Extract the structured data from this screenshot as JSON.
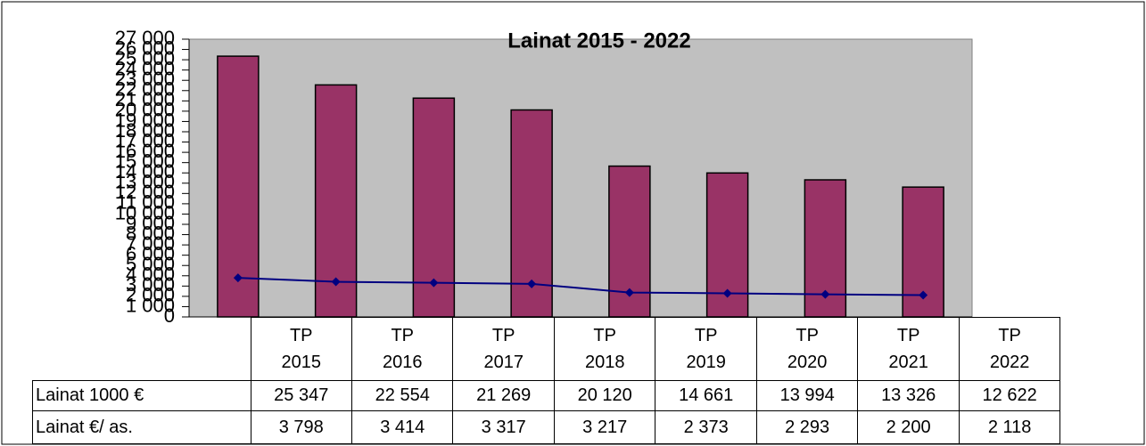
{
  "chart_data": {
    "type": "bar",
    "title": "Lainat 2015 - 2022",
    "categories": [
      "TP 2015",
      "TP 2016",
      "TP 2017",
      "TP 2018",
      "TP 2019",
      "TP 2020",
      "TP 2021",
      "TP 2022"
    ],
    "series": [
      {
        "name": "Lainat 1000 €",
        "type": "bar",
        "color": "#993366",
        "values": [
          25347,
          22554,
          21269,
          20120,
          14661,
          13994,
          13326,
          12622
        ],
        "value_labels": [
          "25 347",
          "22 554",
          "21 269",
          "20 120",
          "14 661",
          "13 994",
          "13 326",
          "12 622"
        ]
      },
      {
        "name": "Lainat €/ as.",
        "type": "line",
        "color": "#000080",
        "values": [
          3798,
          3414,
          3317,
          3217,
          2373,
          2293,
          2200,
          2118
        ],
        "value_labels": [
          "3 798",
          "3 414",
          "3 317",
          "3 217",
          "2 373",
          "2 293",
          "2 200",
          "2 118"
        ]
      }
    ],
    "ylim": [
      0,
      27000
    ],
    "yticks": [
      0,
      {
        "value": 1000,
        "label": "1 000"
      },
      {
        "value": 2000,
        "label": "2 000"
      },
      {
        "value": 3000,
        "label": "3 000"
      },
      {
        "value": 4000,
        "label": "4 000"
      },
      {
        "value": 5000,
        "label": "5 000"
      },
      {
        "value": 6000,
        "label": "6 000"
      },
      {
        "value": 7000,
        "label": "7 000"
      },
      {
        "value": 8000,
        "label": "8 000"
      },
      {
        "value": 9000,
        "label": "9 000"
      },
      {
        "value": 10000,
        "label": "10 000"
      },
      {
        "value": 11000,
        "label": "11 000"
      },
      {
        "value": 12000,
        "label": "12 000"
      },
      {
        "value": 13000,
        "label": "13 000"
      },
      {
        "value": 14000,
        "label": "14 000"
      },
      {
        "value": 15000,
        "label": "15 000"
      },
      {
        "value": 16000,
        "label": "16 000"
      },
      {
        "value": 17000,
        "label": "17 000"
      },
      {
        "value": 18000,
        "label": "18 000"
      },
      {
        "value": 19000,
        "label": "19 000"
      },
      {
        "value": 20000,
        "label": "20 000"
      },
      {
        "value": 21000,
        "label": "21 000"
      },
      {
        "value": 22000,
        "label": "22 000"
      },
      {
        "value": 23000,
        "label": "23 000"
      },
      {
        "value": 24000,
        "label": "24 000"
      },
      {
        "value": 25000,
        "label": "25 000"
      },
      {
        "value": 26000,
        "label": "26 000"
      },
      {
        "value": 27000,
        "label": "27 000"
      }
    ],
    "plot_background": "#c0c0c0"
  }
}
